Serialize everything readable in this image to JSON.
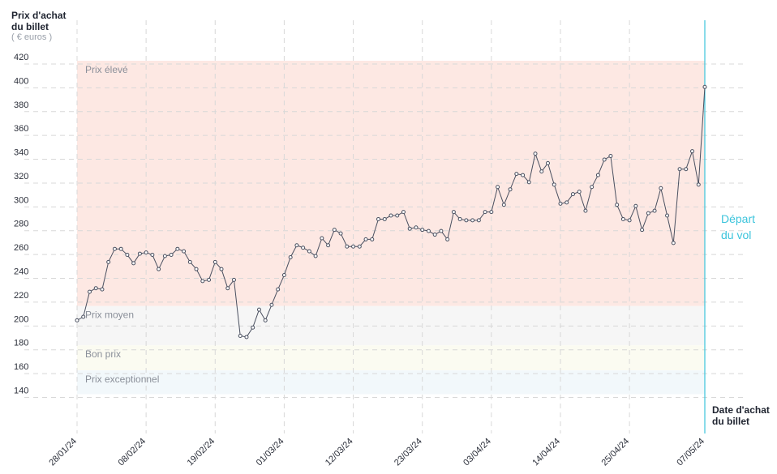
{
  "chart_data": {
    "type": "line",
    "y_title": "Prix d'achat du billet",
    "y_unit": "( € euros )",
    "x_title": "Date d'achat du billet",
    "marker_label": "Départ du vol",
    "ylim": [
      107,
      454
    ],
    "yticks": [
      140,
      160,
      180,
      200,
      220,
      240,
      260,
      280,
      300,
      320,
      340,
      360,
      380,
      400,
      420
    ],
    "grid": true,
    "bands": [
      {
        "label": "Prix élevé",
        "from": 214,
        "to": 420,
        "color": "#fde8e3"
      },
      {
        "label": "Prix moyen",
        "from": 181,
        "to": 214,
        "color": "#f6f6f6"
      },
      {
        "label": "Bon prix",
        "from": 160,
        "to": 181,
        "color": "#fbfbf1"
      },
      {
        "label": "Prix exceptionnel",
        "from": 140,
        "to": 160,
        "color": "#f2f8fb"
      }
    ],
    "categories": [
      "28/01/24",
      null,
      null,
      null,
      null,
      null,
      null,
      null,
      null,
      null,
      null,
      "08/02/24",
      null,
      null,
      null,
      null,
      null,
      null,
      null,
      null,
      null,
      null,
      "19/02/24",
      null,
      null,
      null,
      null,
      null,
      null,
      null,
      null,
      null,
      null,
      "01/03/24",
      null,
      null,
      null,
      null,
      null,
      null,
      null,
      null,
      null,
      null,
      "12/03/24",
      null,
      null,
      null,
      null,
      null,
      null,
      null,
      null,
      null,
      null,
      "23/03/24",
      null,
      null,
      null,
      null,
      null,
      null,
      null,
      null,
      null,
      null,
      "03/04/24",
      null,
      null,
      null,
      null,
      null,
      null,
      null,
      null,
      null,
      null,
      "14/04/24",
      null,
      null,
      null,
      null,
      null,
      null,
      null,
      null,
      null,
      null,
      "25/04/24",
      null,
      null,
      null,
      null,
      null,
      null,
      null,
      null,
      null,
      null,
      null,
      "07/05/24"
    ],
    "series": [
      {
        "name": "Prix",
        "color": "#4a5060",
        "values": [
          202,
          205,
          226,
          229,
          228,
          251,
          262,
          262,
          257,
          250,
          258,
          259,
          257,
          245,
          256,
          257,
          262,
          260,
          251,
          245,
          235,
          236,
          251,
          245,
          229,
          236,
          189,
          188,
          196,
          211,
          202,
          215,
          228,
          240,
          255,
          265,
          263,
          260,
          256,
          271,
          265,
          278,
          275,
          264,
          264,
          264,
          270,
          270,
          287,
          287,
          290,
          290,
          293,
          279,
          280,
          278,
          277,
          274,
          277,
          270,
          293,
          287,
          286,
          286,
          286,
          293,
          293,
          314,
          299,
          312,
          325,
          324,
          318,
          342,
          327,
          334,
          316,
          300,
          301,
          308,
          310,
          294,
          314,
          324,
          337,
          340,
          299,
          287,
          286,
          298,
          278,
          292,
          294,
          313,
          290,
          267,
          329,
          329,
          344,
          316,
          398
        ]
      }
    ]
  }
}
